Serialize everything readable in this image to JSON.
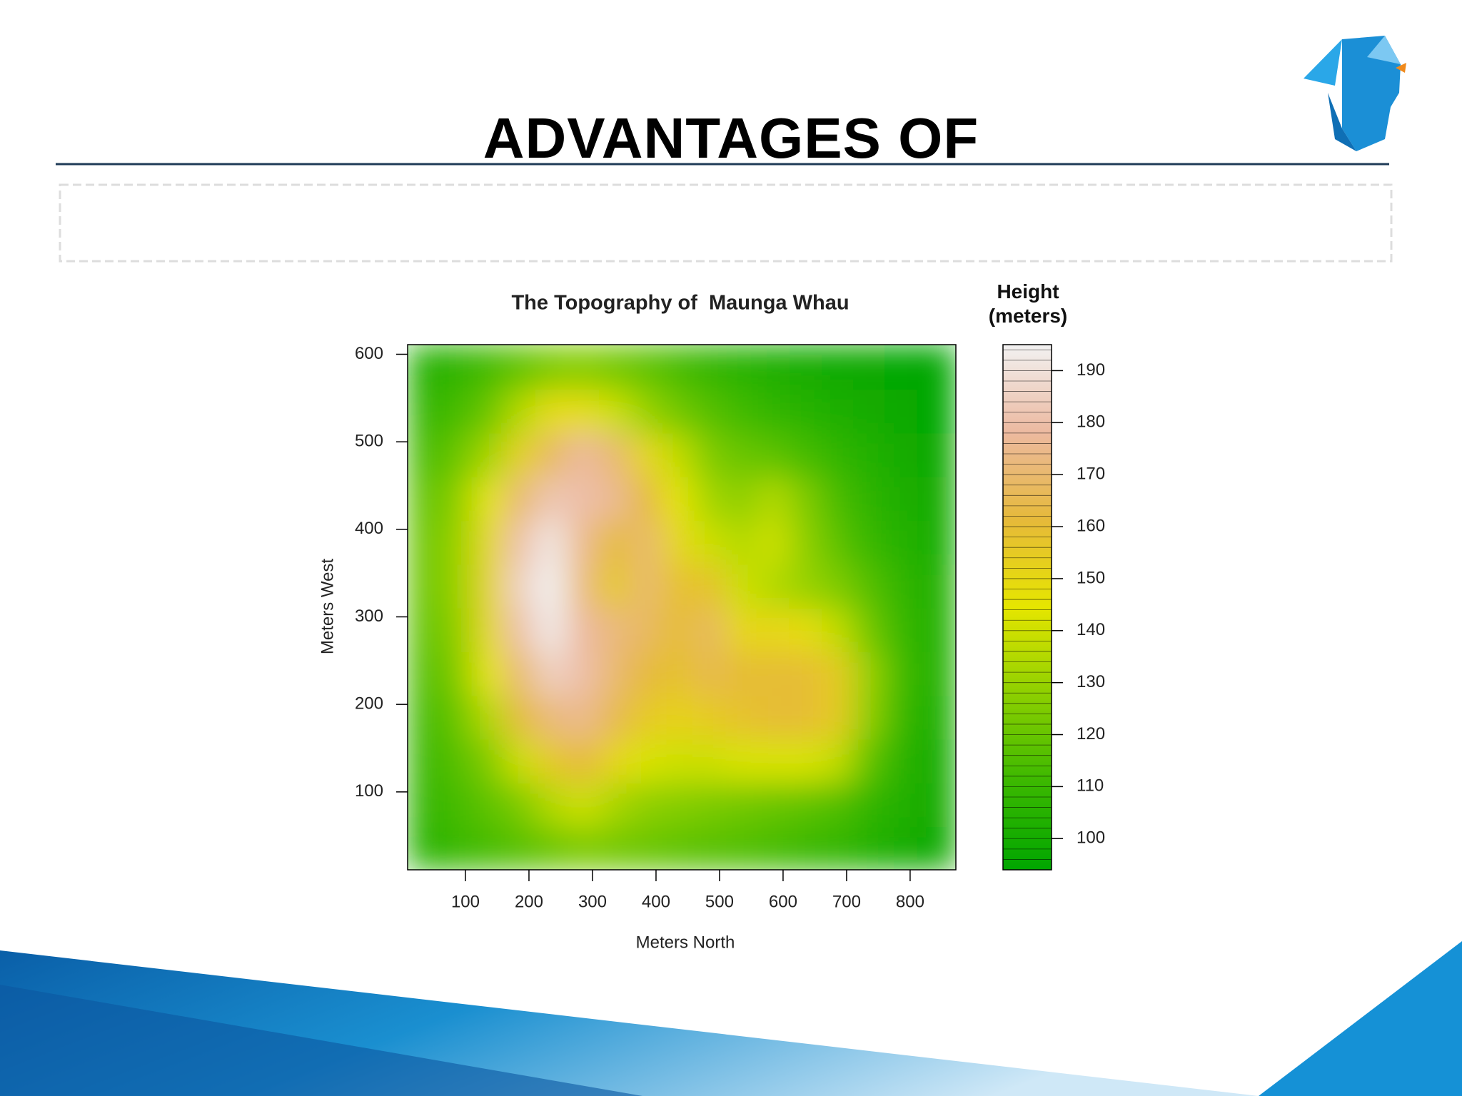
{
  "title": "ADVANTAGES OF",
  "chart_data": {
    "type": "heatmap",
    "title": "The Topography of  Maunga Whau",
    "x_label": "Meters North",
    "y_label": "Meters West",
    "legend_title": "Height (meters)",
    "x": [
      35,
      85,
      135,
      185,
      235,
      285,
      335,
      385,
      435,
      485,
      535,
      585,
      635,
      685,
      735,
      785,
      835
    ],
    "y": [
      35,
      85,
      135,
      185,
      235,
      285,
      335,
      385,
      435,
      485,
      535,
      585
    ],
    "z": [
      [
        105,
        110,
        113,
        116,
        120,
        124,
        122,
        120,
        118,
        116,
        115,
        113,
        110,
        108,
        104,
        100,
        97
      ],
      [
        108,
        113,
        118,
        124,
        135,
        140,
        133,
        128,
        126,
        124,
        122,
        120,
        118,
        115,
        108,
        103,
        99
      ],
      [
        110,
        116,
        125,
        140,
        155,
        162,
        150,
        142,
        140,
        140,
        142,
        142,
        142,
        138,
        118,
        106,
        100
      ],
      [
        112,
        120,
        135,
        160,
        172,
        175,
        165,
        155,
        152,
        155,
        158,
        160,
        160,
        155,
        128,
        110,
        102
      ],
      [
        115,
        125,
        145,
        170,
        185,
        180,
        170,
        162,
        158,
        165,
        160,
        160,
        160,
        155,
        130,
        112,
        104
      ],
      [
        118,
        128,
        150,
        180,
        193,
        178,
        172,
        168,
        160,
        168,
        150,
        150,
        148,
        138,
        122,
        110,
        104
      ],
      [
        120,
        130,
        152,
        185,
        195,
        172,
        155,
        170,
        158,
        158,
        140,
        135,
        130,
        125,
        116,
        108,
        103
      ],
      [
        120,
        130,
        150,
        180,
        192,
        175,
        160,
        170,
        150,
        140,
        135,
        140,
        128,
        118,
        110,
        105,
        101
      ],
      [
        118,
        127,
        145,
        170,
        182,
        180,
        176,
        162,
        145,
        132,
        128,
        135,
        125,
        114,
        107,
        102,
        99
      ],
      [
        113,
        120,
        132,
        152,
        168,
        178,
        170,
        150,
        138,
        125,
        120,
        118,
        113,
        108,
        104,
        100,
        97
      ],
      [
        108,
        113,
        120,
        135,
        148,
        148,
        140,
        130,
        122,
        116,
        112,
        108,
        105,
        102,
        99,
        97,
        95
      ],
      [
        104,
        107,
        112,
        118,
        124,
        126,
        122,
        118,
        113,
        108,
        105,
        102,
        100,
        98,
        96,
        95,
        94
      ]
    ],
    "xlim": [
      9,
      872
    ],
    "ylim": [
      11,
      611
    ],
    "xticks": [
      100,
      200,
      300,
      400,
      500,
      600,
      700,
      800
    ],
    "yticks": [
      100,
      200,
      300,
      400,
      500,
      600
    ],
    "zlim": [
      94,
      195
    ],
    "zticks": [
      100,
      110,
      120,
      130,
      140,
      150,
      160,
      170,
      180,
      190
    ],
    "colors": [
      "#00A600",
      "#3BB800",
      "#8CCF00",
      "#E6E600",
      "#E6B93A",
      "#ECB9A0",
      "#F2F2F2"
    ]
  }
}
